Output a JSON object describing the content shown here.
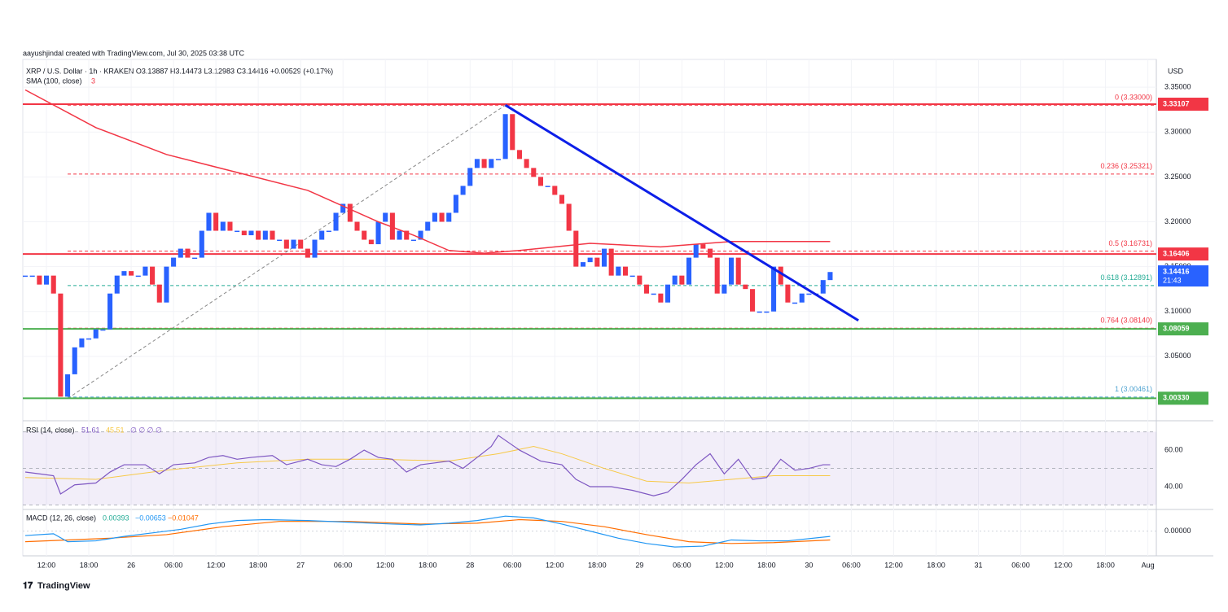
{
  "chart_data": {
    "type": "candlestick",
    "attribution": "aayushjindal created with TradingView.com, Jul 30, 2025 03:38 UTC",
    "legend": "XRP / U.S. Dollar · 1h · KRAKEN  O3.13887  H3.14473  L3.12983  C3.14416  +0.00529 (+0.17%)",
    "currency": "USD",
    "footer": "TradingView",
    "up_color": "#2962ff",
    "down_color": "#f23645",
    "xlim": [
      -0.35,
      160.2
    ],
    "ylim": [
      2.98,
      3.381
    ],
    "grid": true,
    "xticks": [
      {
        "value": 3,
        "label": "12:00"
      },
      {
        "value": 9,
        "label": "18:00"
      },
      {
        "value": 15,
        "label": "26"
      },
      {
        "value": 21,
        "label": "06:00"
      },
      {
        "value": 27,
        "label": "12:00"
      },
      {
        "value": 33,
        "label": "18:00"
      },
      {
        "value": 39,
        "label": "27"
      },
      {
        "value": 45,
        "label": "06:00"
      },
      {
        "value": 51,
        "label": "12:00"
      },
      {
        "value": 57,
        "label": "18:00"
      },
      {
        "value": 63,
        "label": "28"
      },
      {
        "value": 69,
        "label": "06:00"
      },
      {
        "value": 75,
        "label": "12:00"
      },
      {
        "value": 81,
        "label": "18:00"
      },
      {
        "value": 87,
        "label": "29"
      },
      {
        "value": 93,
        "label": "06:00"
      },
      {
        "value": 99,
        "label": "12:00"
      },
      {
        "value": 105,
        "label": "18:00"
      },
      {
        "value": 111,
        "label": "30"
      },
      {
        "value": 117,
        "label": "06:00"
      },
      {
        "value": 123,
        "label": "12:00"
      },
      {
        "value": 129,
        "label": "18:00"
      },
      {
        "value": 135,
        "label": "31"
      },
      {
        "value": 141,
        "label": "06:00"
      },
      {
        "value": 147,
        "label": "12:00"
      },
      {
        "value": 153,
        "label": "18:00"
      },
      {
        "value": 159,
        "label": "Aug"
      }
    ],
    "yticks": [
      {
        "value": 3.35,
        "label": "3.35000"
      },
      {
        "value": 3.3,
        "label": "3.30000"
      },
      {
        "value": 3.25,
        "label": "3.25000"
      },
      {
        "value": 3.2,
        "label": "3.20000"
      },
      {
        "value": 3.15,
        "label": "3.15000"
      },
      {
        "value": 3.1,
        "label": "3.10000"
      },
      {
        "value": 3.05,
        "label": "3.05000"
      }
    ],
    "close": [
      3.14,
      3.14,
      3.13,
      3.14,
      3.12,
      3.005,
      3.03,
      3.06,
      3.07,
      3.07,
      3.08,
      3.08,
      3.12,
      3.14,
      3.145,
      3.14,
      3.14,
      3.15,
      3.13,
      3.11,
      3.15,
      3.16,
      3.17,
      3.16,
      3.16,
      3.19,
      3.21,
      3.19,
      3.2,
      3.19,
      3.19,
      3.185,
      3.19,
      3.18,
      3.19,
      3.18,
      3.18,
      3.17,
      3.18,
      3.17,
      3.16,
      3.18,
      3.19,
      3.19,
      3.21,
      3.22,
      3.2,
      3.19,
      3.18,
      3.175,
      3.2,
      3.21,
      3.18,
      3.19,
      3.18,
      3.18,
      3.19,
      3.2,
      3.21,
      3.2,
      3.21,
      3.23,
      3.24,
      3.26,
      3.27,
      3.26,
      3.27,
      3.27,
      3.32,
      3.28,
      3.27,
      3.26,
      3.25,
      3.24,
      3.24,
      3.23,
      3.22,
      3.19,
      3.15,
      3.155,
      3.16,
      3.15,
      3.17,
      3.14,
      3.15,
      3.14,
      3.14,
      3.13,
      3.12,
      3.12,
      3.11,
      3.13,
      3.14,
      3.13,
      3.16,
      3.175,
      3.17,
      3.16,
      3.12,
      3.13,
      3.16,
      3.13,
      3.125,
      3.1,
      3.1,
      3.1,
      3.15,
      3.13,
      3.11,
      3.11,
      3.12,
      3.12,
      3.12,
      3.135,
      3.144
    ],
    "sma": {
      "name": "SMA (100, close)",
      "setting": 3,
      "color": "#f23645",
      "x": [
        0,
        10,
        20,
        30,
        40,
        50,
        55,
        60,
        65,
        70,
        75,
        80,
        90,
        100,
        114
      ],
      "values": [
        3.347,
        3.305,
        3.275,
        3.255,
        3.235,
        3.2,
        3.185,
        3.168,
        3.165,
        3.168,
        3.172,
        3.176,
        3.172,
        3.178,
        3.178
      ]
    },
    "levels": [
      {
        "value": 3.33107,
        "label": "3.33107",
        "color": "#f23645"
      },
      {
        "value": 3.16406,
        "label": "3.16406",
        "color": "#f23645"
      },
      {
        "value": 3.08059,
        "label": "3.08059",
        "color": "#4caf50"
      },
      {
        "value": 3.0033,
        "label": "3.00330",
        "color": "#4caf50"
      }
    ],
    "last_price": {
      "value": 3.14416,
      "label": "3.14416",
      "countdown": "21:43",
      "color": "#2962ff"
    },
    "fib": [
      {
        "value": 3.33,
        "label": "0 (3.33000)",
        "color": "#f23645"
      },
      {
        "value": 3.25321,
        "label": "0.236 (3.25321)",
        "color": "#f23645"
      },
      {
        "value": 3.16731,
        "label": "0.5 (3.16731)",
        "color": "#f23645"
      },
      {
        "value": 3.12891,
        "label": "0.618 (3.12891)",
        "color": "#22ab94"
      },
      {
        "value": 3.0814,
        "label": "0.764 (3.08140)",
        "color": "#f23645"
      },
      {
        "value": 3.00461,
        "label": "1 (3.00461)",
        "color": "#4fa3d1"
      }
    ],
    "fib_start": 6,
    "trendline": {
      "color": "#0d1fe8",
      "x": [
        68,
        118
      ],
      "values": [
        3.33,
        3.09
      ]
    },
    "fib_diagonal": {
      "color": "#888888",
      "x": [
        6,
        68
      ],
      "values": [
        3.003,
        3.33
      ]
    },
    "rsi": {
      "title": "RSI (14, close)",
      "readings": [
        "51.61",
        "45.51",
        "∅ ∅ ∅ ∅"
      ],
      "ylim": [
        28,
        74.7
      ],
      "band": [
        30,
        70
      ],
      "midline": 50,
      "yticks": [
        {
          "value": 60,
          "label": "60.00"
        },
        {
          "value": 40,
          "label": "40.00"
        }
      ],
      "line": {
        "color": "#7e57c2",
        "x": [
          0,
          2,
          4,
          5,
          7,
          10,
          12,
          14,
          17,
          19,
          21,
          24,
          26,
          28,
          30,
          32,
          35,
          37,
          40,
          42,
          44,
          46,
          48,
          50,
          52,
          54,
          56,
          58,
          60,
          62,
          64,
          66,
          67,
          70,
          73,
          76,
          78,
          80,
          83,
          86,
          89,
          91,
          93,
          95,
          97,
          99,
          101,
          103,
          105,
          107,
          109,
          111,
          113,
          114
        ],
        "values": [
          48,
          47,
          46,
          36,
          41,
          42,
          48,
          52,
          52,
          47,
          52,
          53,
          56,
          57,
          55,
          56,
          57,
          52,
          55,
          52,
          51,
          55,
          60,
          56,
          55,
          48,
          52,
          53,
          54,
          50,
          56,
          62,
          68,
          60,
          54,
          52,
          44,
          40,
          40,
          38,
          35,
          37,
          44,
          52,
          58,
          47,
          55,
          44,
          45,
          55,
          49,
          50,
          52,
          52
        ]
      },
      "ma": {
        "color": "#f7c948",
        "x": [
          0,
          10,
          20,
          30,
          40,
          50,
          60,
          67,
          72,
          76,
          82,
          88,
          94,
          100,
          106,
          114
        ],
        "values": [
          45,
          44,
          49,
          53,
          55,
          55,
          54,
          58,
          62,
          58,
          50,
          43,
          42,
          44,
          46,
          46
        ]
      }
    },
    "macd": {
      "title": "MACD (12, 26, close)",
      "readings": [
        "0.00393",
        "−0.00653",
        "−0.01047"
      ],
      "ylim": [
        -0.028,
        0.0227
      ],
      "yticks": [
        {
          "value": 0,
          "label": "0.00000"
        }
      ],
      "line": {
        "color": "#2196f3",
        "x": [
          0,
          4,
          6,
          10,
          14,
          18,
          22,
          26,
          30,
          34,
          40,
          46,
          52,
          56,
          60,
          64,
          68,
          72,
          76,
          80,
          84,
          88,
          92,
          96,
          100,
          104,
          108,
          114
        ],
        "values": [
          -0.005,
          -0.003,
          -0.012,
          -0.011,
          -0.006,
          -0.002,
          0.002,
          0.008,
          0.012,
          0.013,
          0.012,
          0.01,
          0.008,
          0.007,
          0.009,
          0.012,
          0.017,
          0.015,
          0.008,
          0,
          -0.008,
          -0.014,
          -0.018,
          -0.017,
          -0.01,
          -0.011,
          -0.011,
          -0.006
        ]
      },
      "signal": {
        "color": "#ff6d00",
        "x": [
          0,
          6,
          12,
          20,
          28,
          36,
          46,
          56,
          64,
          70,
          76,
          82,
          88,
          94,
          100,
          106,
          114
        ],
        "values": [
          -0.012,
          -0.01,
          -0.008,
          -0.004,
          0.005,
          0.011,
          0.011,
          0.008,
          0.009,
          0.013,
          0.011,
          0.005,
          -0.004,
          -0.012,
          -0.014,
          -0.013,
          -0.01
        ]
      }
    }
  }
}
